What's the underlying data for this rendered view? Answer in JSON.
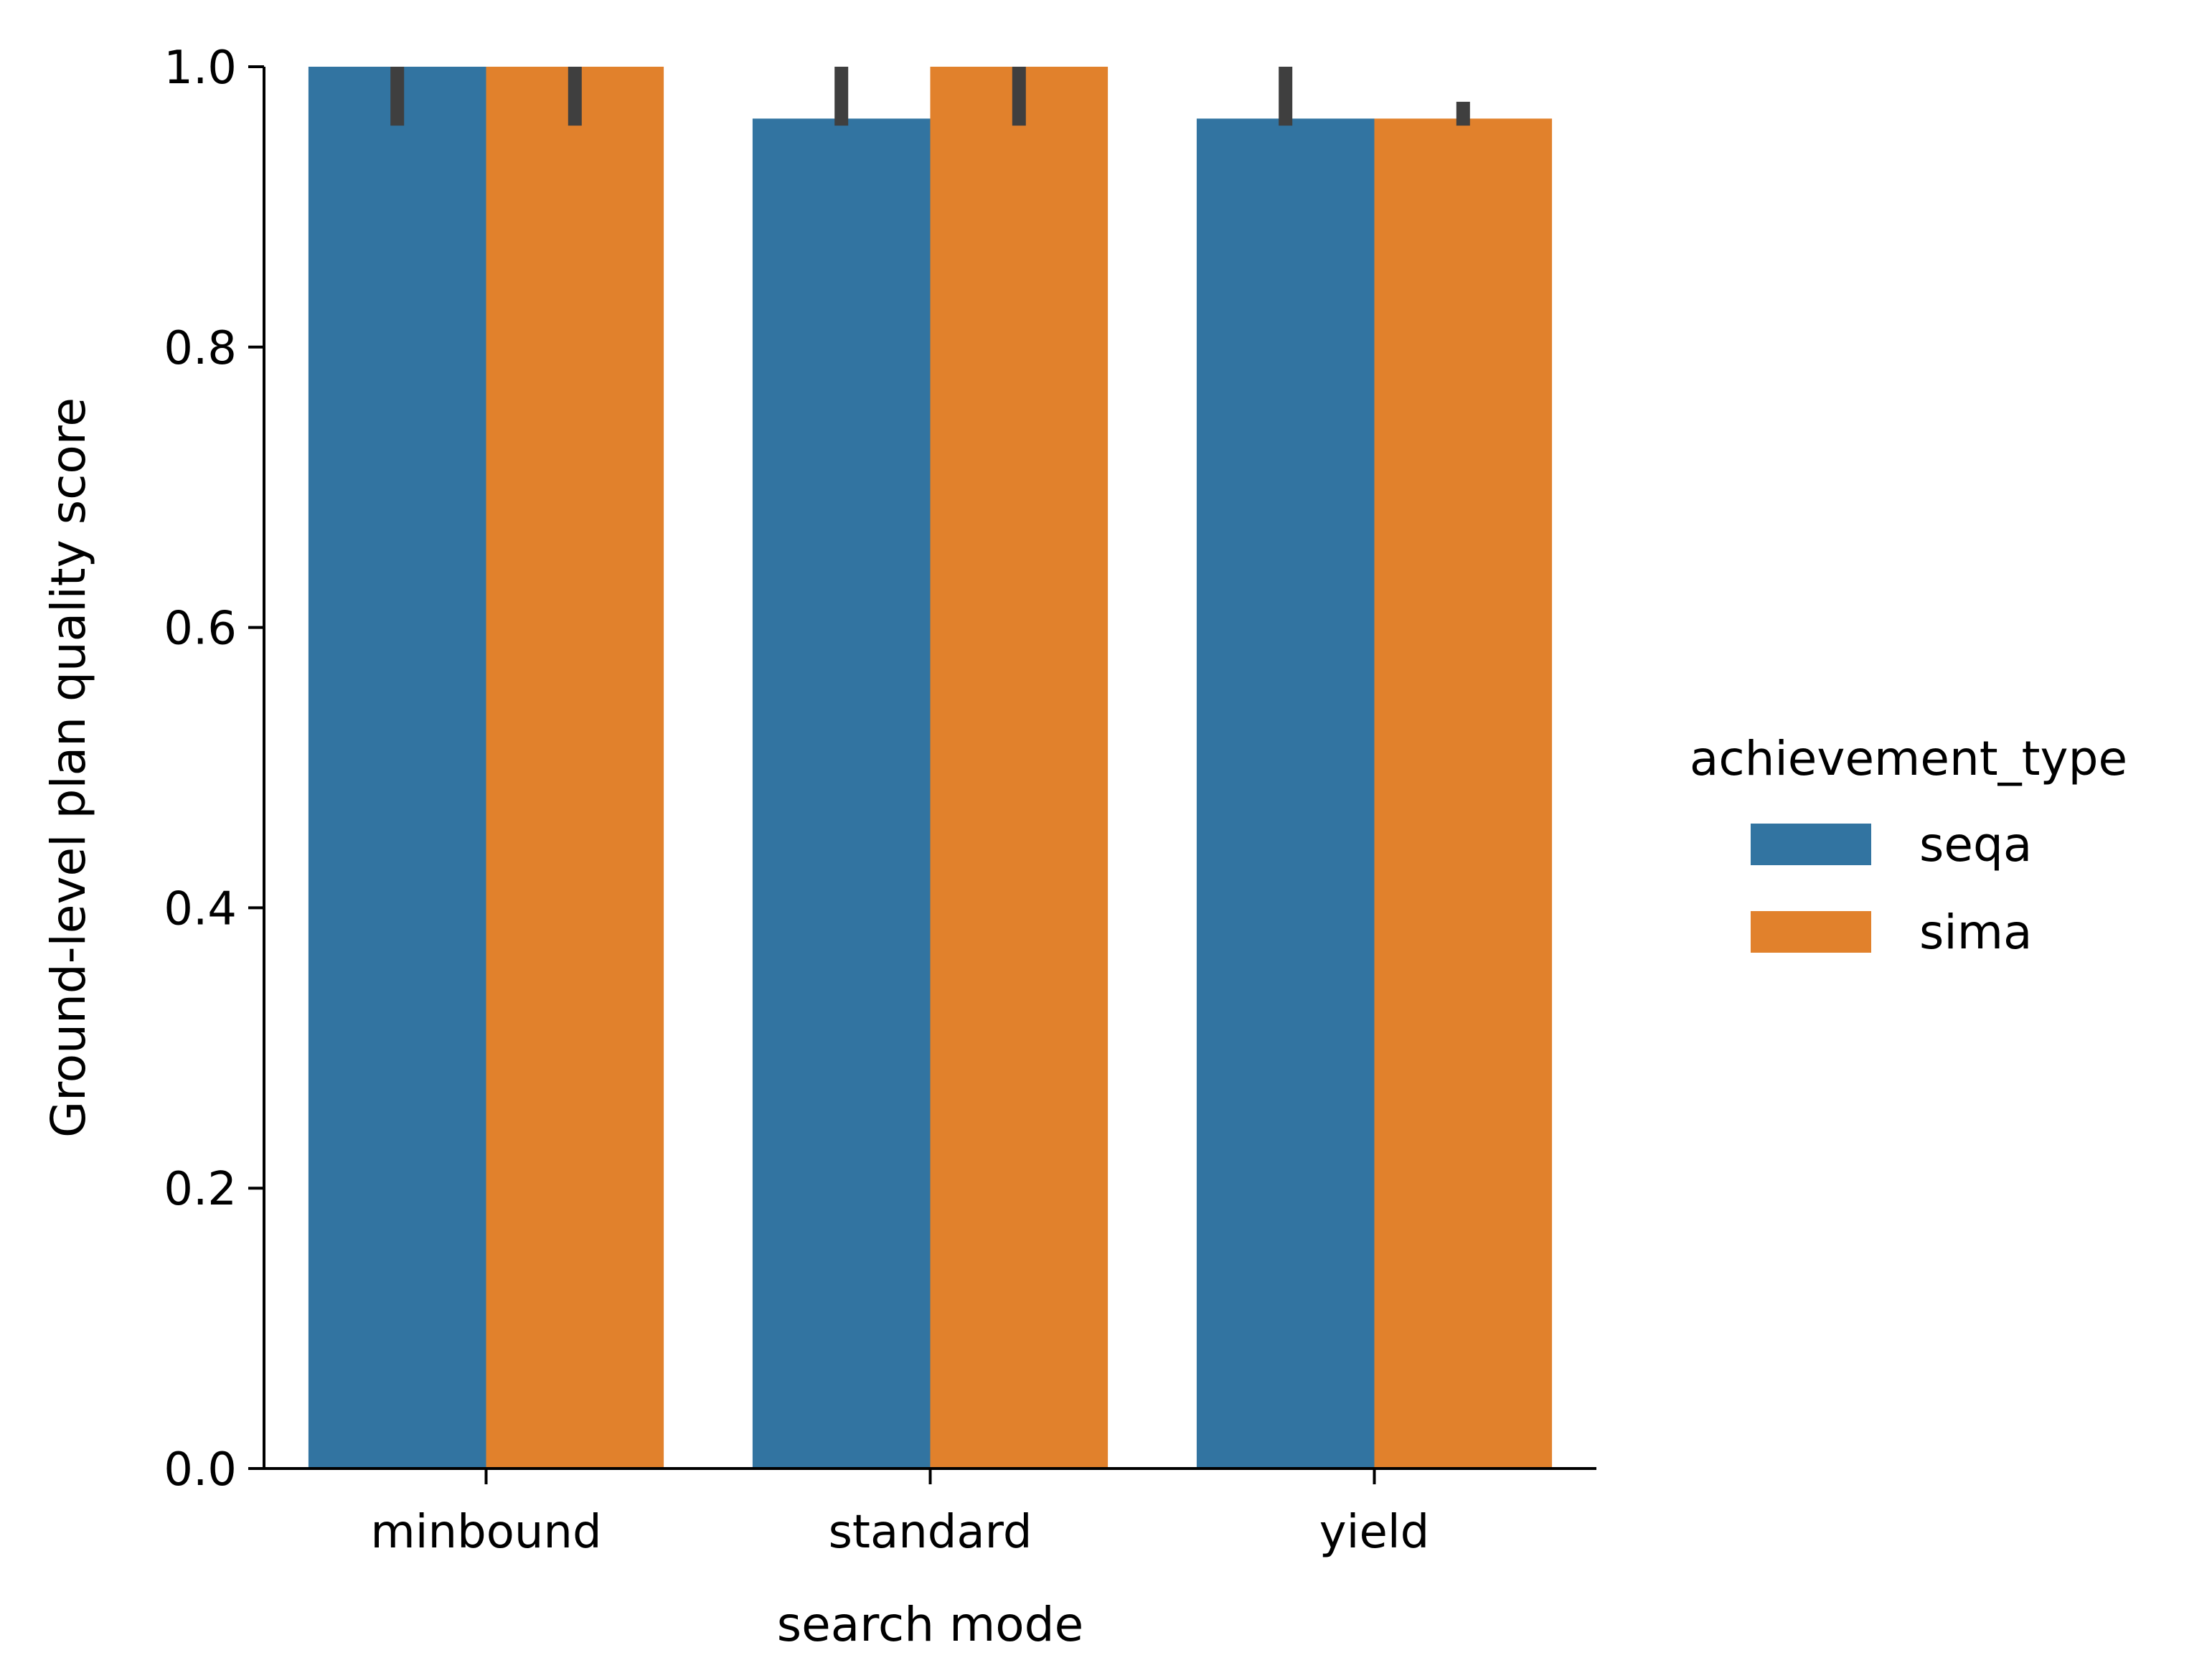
{
  "chart_data": {
    "type": "bar",
    "title": "",
    "xlabel": "search mode",
    "ylabel": "Ground-level plan quality score",
    "categories": [
      "minbound",
      "standard",
      "yield"
    ],
    "ylim": [
      0.0,
      1.0
    ],
    "yticks": [
      "0.0",
      "0.2",
      "0.4",
      "0.6",
      "0.8",
      "1.0"
    ],
    "grid": false,
    "legend": {
      "title": "achievement_type",
      "placement": "right"
    },
    "series": [
      {
        "name": "seqa",
        "color": "#3274a1",
        "values": [
          1.0,
          0.963,
          0.963
        ],
        "ci": [
          [
            0.958,
            1.0
          ],
          [
            0.958,
            1.0
          ],
          [
            0.958,
            1.0
          ]
        ]
      },
      {
        "name": "sima",
        "color": "#e1812c",
        "values": [
          1.0,
          1.0,
          0.963
        ],
        "ci": [
          [
            0.958,
            1.0
          ],
          [
            0.958,
            1.0
          ],
          [
            0.958,
            0.975
          ]
        ]
      }
    ],
    "errorbar_color": "#3f3f3f"
  }
}
